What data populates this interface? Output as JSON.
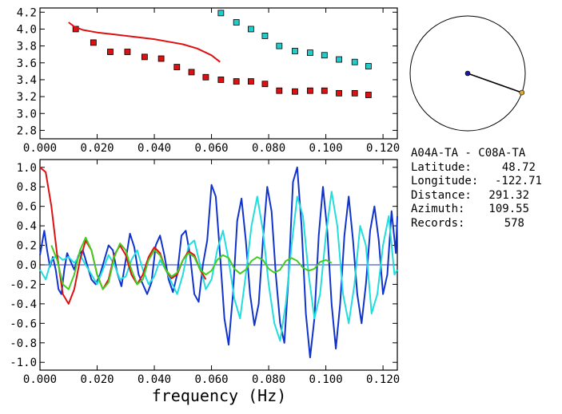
{
  "chart_data": [
    {
      "type": "scatter",
      "title": "",
      "xlabel": "",
      "ylabel": "",
      "xlim": [
        0.0,
        0.125
      ],
      "ylim": [
        2.7,
        4.25
      ],
      "xticks": [
        "0.000",
        "0.020",
        "0.040",
        "0.060",
        "0.080",
        "0.100",
        "0.120"
      ],
      "yticks": [
        "2.8",
        "3.0",
        "3.2",
        "3.4",
        "3.6",
        "3.8",
        "4.0",
        "4.2"
      ],
      "series": [
        {
          "color": "#dd1111",
          "marker": "square",
          "x": [
            0.0125,
            0.0187,
            0.0246,
            0.0306,
            0.0366,
            0.0424,
            0.0479,
            0.053,
            0.058,
            0.0633,
            0.0687,
            0.0738,
            0.0787,
            0.0837,
            0.0892,
            0.0945,
            0.0995,
            0.1046,
            0.1101,
            0.1149
          ],
          "y": [
            4.0,
            3.84,
            3.73,
            3.73,
            3.67,
            3.65,
            3.55,
            3.49,
            3.43,
            3.4,
            3.38,
            3.38,
            3.35,
            3.27,
            3.26,
            3.27,
            3.27,
            3.24,
            3.24,
            3.22
          ]
        },
        {
          "color": "#22cccc",
          "marker": "square",
          "x": [
            0.0633,
            0.0687,
            0.0738,
            0.0787,
            0.0837,
            0.0892,
            0.0945,
            0.0995,
            0.1046,
            0.1101,
            0.1149
          ],
          "y": [
            4.19,
            4.08,
            4.0,
            3.92,
            3.8,
            3.74,
            3.72,
            3.69,
            3.64,
            3.61,
            3.56
          ]
        },
        {
          "color": "#dd1111",
          "marker": "line",
          "x": [
            0.01,
            0.012,
            0.015,
            0.02,
            0.025,
            0.03,
            0.035,
            0.04,
            0.045,
            0.05,
            0.055,
            0.06,
            0.063
          ],
          "y": [
            4.08,
            4.03,
            3.99,
            3.96,
            3.94,
            3.92,
            3.9,
            3.88,
            3.85,
            3.82,
            3.77,
            3.69,
            3.61
          ]
        }
      ]
    },
    {
      "type": "line",
      "title": "",
      "xlabel": "frequency (Hz)",
      "ylabel": "",
      "xlim": [
        0.0,
        0.125
      ],
      "ylim": [
        -1.08,
        1.08
      ],
      "xticks": [
        "0.000",
        "0.020",
        "0.040",
        "0.060",
        "0.080",
        "0.100",
        "0.120"
      ],
      "yticks": [
        "-1.0",
        "-0.8",
        "-0.6",
        "-0.4",
        "-0.2",
        "0.0",
        "0.2",
        "0.4",
        "0.6",
        "0.8",
        "1.0"
      ],
      "series": [
        {
          "color": "#1133cc",
          "x": [
            0.0,
            0.0015,
            0.0025,
            0.0035,
            0.0045,
            0.0055,
            0.0065,
            0.0075,
            0.0085,
            0.0095,
            0.0105,
            0.012,
            0.0135,
            0.015,
            0.0165,
            0.018,
            0.0195,
            0.021,
            0.0225,
            0.024,
            0.0255,
            0.027,
            0.0285,
            0.03,
            0.0315,
            0.033,
            0.0345,
            0.036,
            0.0375,
            0.039,
            0.0405,
            0.042,
            0.0435,
            0.045,
            0.0465,
            0.048,
            0.0495,
            0.051,
            0.0525,
            0.054,
            0.0555,
            0.057,
            0.0585,
            0.06,
            0.0615,
            0.063,
            0.0645,
            0.066,
            0.0675,
            0.069,
            0.0705,
            0.072,
            0.0735,
            0.075,
            0.0765,
            0.078,
            0.0795,
            0.081,
            0.0825,
            0.084,
            0.0855,
            0.087,
            0.0885,
            0.09,
            0.0915,
            0.093,
            0.0945,
            0.096,
            0.0975,
            0.099,
            0.1005,
            0.102,
            0.1035,
            0.105,
            0.1065,
            0.108,
            0.1095,
            0.111,
            0.1125,
            0.114,
            0.1155,
            0.117,
            0.1185,
            0.12,
            0.1215,
            0.123,
            0.1245,
            0.125
          ],
          "y": [
            0.1,
            0.35,
            0.15,
            -0.02,
            0.08,
            -0.05,
            -0.25,
            -0.3,
            -0.05,
            0.12,
            0.05,
            -0.05,
            0.1,
            0.15,
            0.0,
            -0.15,
            -0.2,
            -0.1,
            0.05,
            0.2,
            0.15,
            -0.08,
            -0.22,
            0.05,
            0.32,
            0.18,
            -0.1,
            -0.2,
            -0.3,
            -0.18,
            0.2,
            0.3,
            0.1,
            -0.15,
            -0.28,
            -0.1,
            0.3,
            0.35,
            0.1,
            -0.3,
            -0.38,
            0.0,
            0.25,
            0.82,
            0.7,
            0.1,
            -0.55,
            -0.82,
            -0.3,
            0.45,
            0.68,
            0.25,
            -0.3,
            -0.62,
            -0.4,
            0.25,
            0.8,
            0.55,
            -0.1,
            -0.6,
            -0.8,
            -0.1,
            0.85,
            1.0,
            0.4,
            -0.5,
            -0.95,
            -0.55,
            0.3,
            0.8,
            0.35,
            -0.4,
            -0.86,
            -0.4,
            0.3,
            0.7,
            0.25,
            -0.3,
            -0.6,
            -0.2,
            0.35,
            0.6,
            0.25,
            -0.3,
            -0.1,
            0.55,
            0.12,
            0.5
          ]
        },
        {
          "color": "#22dddd",
          "x": [
            0.0,
            0.002,
            0.004,
            0.006,
            0.008,
            0.01,
            0.012,
            0.014,
            0.016,
            0.018,
            0.02,
            0.022,
            0.024,
            0.026,
            0.028,
            0.03,
            0.032,
            0.034,
            0.036,
            0.038,
            0.04,
            0.042,
            0.044,
            0.046,
            0.048,
            0.05,
            0.052,
            0.054,
            0.056,
            0.058,
            0.06,
            0.062,
            0.064,
            0.066,
            0.068,
            0.07,
            0.072,
            0.074,
            0.076,
            0.078,
            0.08,
            0.082,
            0.084,
            0.086,
            0.088,
            0.09,
            0.092,
            0.094,
            0.096,
            0.098,
            0.1,
            0.102,
            0.104,
            0.106,
            0.108,
            0.11,
            0.112,
            0.114,
            0.116,
            0.118,
            0.12,
            0.122,
            0.124,
            0.125
          ],
          "y": [
            -0.05,
            -0.15,
            0.05,
            0.1,
            0.05,
            0.08,
            0.02,
            0.1,
            0.0,
            -0.1,
            -0.2,
            -0.05,
            0.1,
            0.0,
            -0.15,
            -0.12,
            0.05,
            0.15,
            -0.05,
            -0.2,
            -0.12,
            0.05,
            -0.05,
            -0.18,
            -0.3,
            -0.1,
            0.2,
            0.25,
            0.0,
            -0.25,
            -0.15,
            0.15,
            0.35,
            0.05,
            -0.35,
            -0.55,
            -0.1,
            0.4,
            0.7,
            0.35,
            -0.2,
            -0.6,
            -0.78,
            -0.4,
            0.2,
            0.7,
            0.5,
            -0.1,
            -0.55,
            -0.3,
            0.3,
            0.75,
            0.4,
            -0.3,
            -0.6,
            -0.2,
            0.4,
            0.2,
            -0.5,
            -0.3,
            0.2,
            0.5,
            -0.1,
            -0.05
          ]
        },
        {
          "color": "#dd1111",
          "x": [
            0.0,
            0.002,
            0.004,
            0.006,
            0.008,
            0.01,
            0.012,
            0.014,
            0.016,
            0.018,
            0.02,
            0.022,
            0.024,
            0.026,
            0.028,
            0.03,
            0.032,
            0.034,
            0.036,
            0.038,
            0.04,
            0.042,
            0.044,
            0.046,
            0.048,
            0.05,
            0.052,
            0.054,
            0.056,
            0.058
          ],
          "y": [
            1.0,
            0.95,
            0.6,
            0.1,
            -0.3,
            -0.4,
            -0.25,
            0.05,
            0.25,
            0.15,
            -0.1,
            -0.25,
            -0.15,
            0.1,
            0.2,
            0.1,
            -0.1,
            -0.2,
            -0.1,
            0.08,
            0.18,
            0.12,
            -0.05,
            -0.14,
            -0.1,
            0.05,
            0.14,
            0.1,
            -0.05,
            -0.15
          ]
        },
        {
          "color": "#44cc22",
          "x": [
            0.004,
            0.006,
            0.008,
            0.01,
            0.012,
            0.014,
            0.016,
            0.018,
            0.02,
            0.022,
            0.024,
            0.026,
            0.028,
            0.03,
            0.032,
            0.034,
            0.036,
            0.038,
            0.04,
            0.042,
            0.044,
            0.046,
            0.048,
            0.05,
            0.052,
            0.054,
            0.056,
            0.058,
            0.06,
            0.062,
            0.064,
            0.066,
            0.068,
            0.07,
            0.072,
            0.074,
            0.076,
            0.078,
            0.08,
            0.082,
            0.084,
            0.086,
            0.088,
            0.09,
            0.092,
            0.094,
            0.096,
            0.098,
            0.1,
            0.102
          ],
          "y": [
            0.2,
            0.05,
            -0.2,
            -0.25,
            -0.1,
            0.15,
            0.28,
            0.15,
            -0.1,
            -0.25,
            -0.18,
            0.08,
            0.22,
            0.15,
            -0.05,
            -0.2,
            -0.15,
            0.05,
            0.15,
            0.1,
            -0.05,
            -0.12,
            -0.08,
            0.05,
            0.12,
            0.08,
            -0.05,
            -0.1,
            -0.06,
            0.05,
            0.1,
            0.07,
            -0.04,
            -0.09,
            -0.05,
            0.04,
            0.08,
            0.05,
            -0.04,
            -0.08,
            -0.05,
            0.04,
            0.07,
            0.04,
            -0.03,
            -0.06,
            -0.04,
            0.03,
            0.05,
            0.02
          ]
        }
      ]
    }
  ],
  "station": {
    "pair": "A04A-TA - C08A-TA",
    "latitude_label": "Latitude:",
    "latitude_value": "48.72",
    "longitude_label": "Longitude:",
    "longitude_value": "-122.71",
    "distance_label": "Distance:",
    "distance_value": "291.32",
    "azimuth_label": "Azimuth:",
    "azimuth_value": "109.55",
    "records_label": "Records:",
    "records_value": "578"
  },
  "azimuth_diagram": {
    "azimuth_deg": 109.55,
    "center_color": "#1a1a99",
    "end_color": "#ddaa33"
  },
  "colors": {
    "axis": "#000000",
    "zero_line": "#1133cc"
  }
}
